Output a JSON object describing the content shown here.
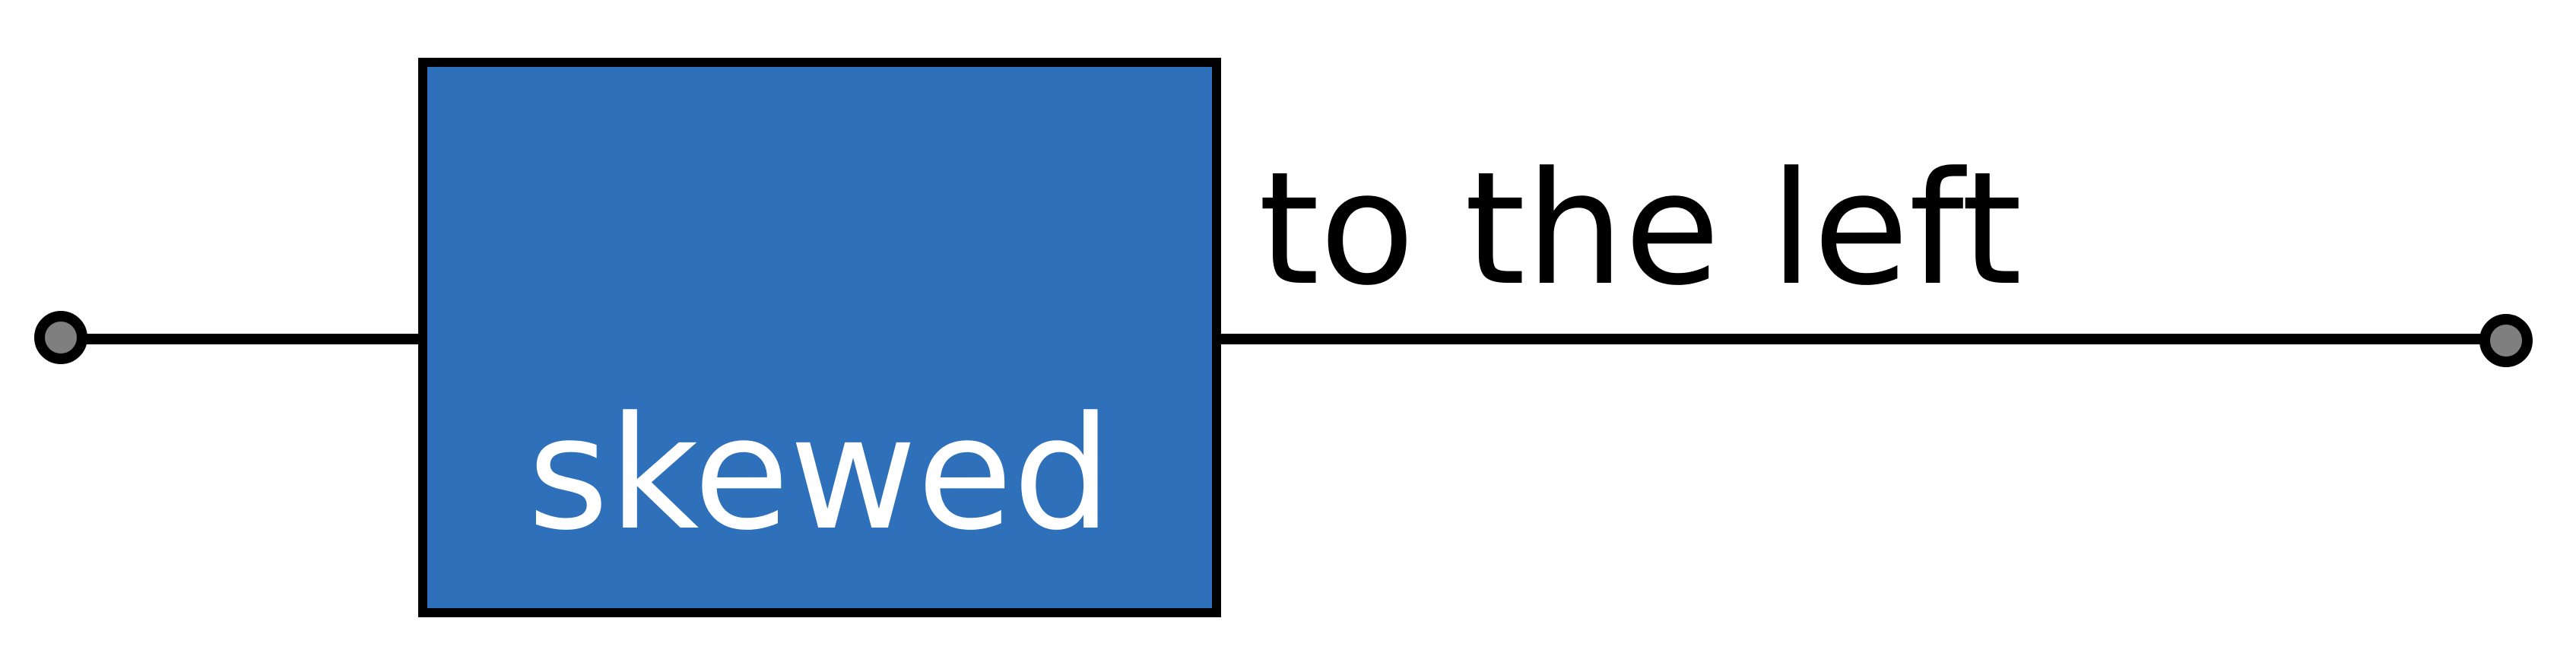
{
  "diagram": {
    "block_label": "skewed",
    "side_label": "to the left",
    "colors": {
      "block_fill": "#2E71BA",
      "stroke": "#000000",
      "terminal_fill": "#7F7F7F",
      "block_text": "#FFFFFF",
      "side_text": "#000000",
      "background": "#FFFFFF"
    }
  }
}
